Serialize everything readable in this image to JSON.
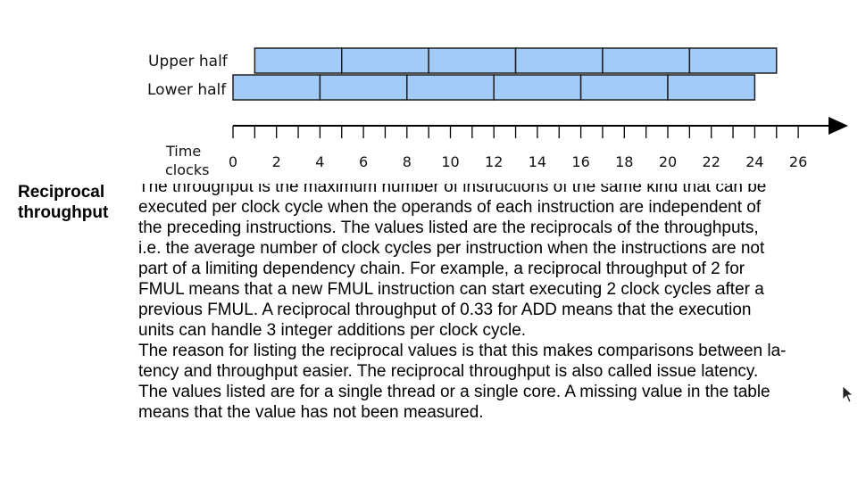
{
  "diagram": {
    "rows": [
      {
        "label": "Upper half",
        "start_clock": 1,
        "segment_clocks": 4,
        "segments": 6
      },
      {
        "label": "Lower half",
        "start_clock": 0,
        "segment_clocks": 4,
        "segments": 6
      }
    ],
    "bar_color": "#a3cbf7",
    "bar_border": "#1f1f1f",
    "axis": {
      "label_line1": "Time",
      "label_line2": "clocks",
      "tick_labels": [
        "0",
        "2",
        "4",
        "6",
        "8",
        "10",
        "12",
        "14",
        "16",
        "18",
        "20",
        "22",
        "24",
        "26"
      ]
    }
  },
  "definition": {
    "term_line1": "Reciprocal",
    "term_line2": "throughput",
    "lines": [
      "The throughput is the maximum number of instructions of the same kind that can be",
      "executed per clock cycle when the operands of each instruction are independent of",
      "the preceding instructions. The values listed are the reciprocals of the throughputs,",
      "i.e. the average number of clock cycles per instruction when the instructions are not",
      "part of a limiting dependency chain. For example, a reciprocal throughput of 2 for",
      "FMUL means that a new FMUL instruction can start executing 2 clock cycles after a",
      "previous FMUL. A reciprocal throughput of 0.33 for ADD means that the execution",
      "units can handle 3 integer additions per clock cycle.",
      "The reason for listing the reciprocal values is that this makes comparisons between la-",
      "tency and throughput easier. The reciprocal throughput is also called issue latency.",
      "The values listed are for a single thread or a single core. A missing value in the table",
      "means that the value has not been measured."
    ]
  }
}
